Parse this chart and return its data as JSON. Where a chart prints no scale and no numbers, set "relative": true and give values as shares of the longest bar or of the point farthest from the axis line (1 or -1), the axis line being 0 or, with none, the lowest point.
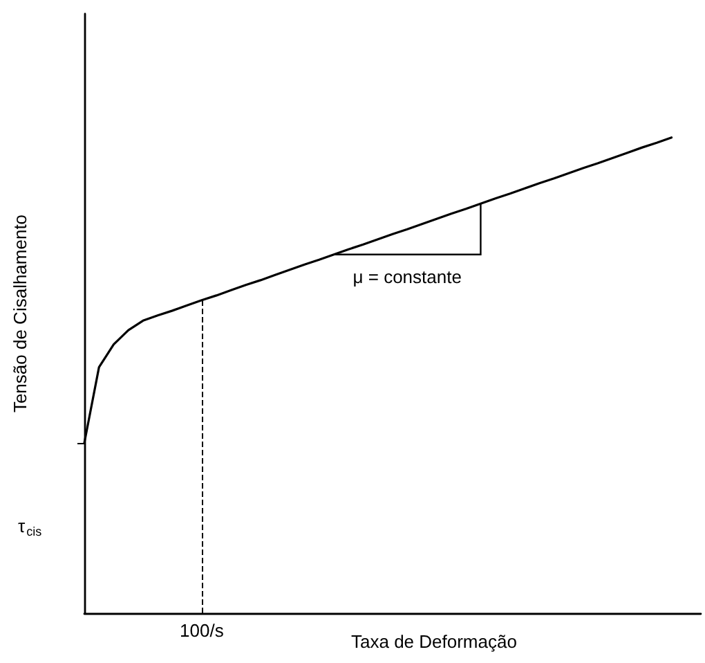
{
  "chart_data": {
    "type": "line",
    "relative": true,
    "xlabel": "Taxa de Deformação",
    "ylabel": "Tensão de Cisalhamento",
    "categories": [
      null,
      null,
      null,
      null,
      null,
      null,
      null,
      null,
      null,
      null,
      null,
      null,
      null,
      null,
      null,
      null,
      null,
      null,
      null,
      null,
      null,
      null,
      null,
      null,
      null,
      null,
      null,
      null,
      null,
      null,
      null,
      null,
      null,
      null,
      null,
      null,
      null,
      null,
      null,
      null,
      null,
      null,
      null
    ],
    "values": [
      0.358,
      0.517,
      0.565,
      0.595,
      0.615,
      0.626,
      0.636,
      0.647,
      0.658,
      0.668,
      0.679,
      0.69,
      0.7,
      0.711,
      0.722,
      0.733,
      0.743,
      0.754,
      0.765,
      0.775,
      0.786,
      0.797,
      0.807,
      0.818,
      0.829,
      0.84,
      0.85,
      0.861,
      0.872,
      0.882,
      0.893,
      0.904,
      0.914,
      0.925,
      0.936,
      0.946,
      0.957,
      0.968,
      0.979,
      0.989,
      1,
      null,
      null
    ],
    "color": "#000000",
    "annotations": [
      "τ$_{cis}$",
      "μ = constante",
      "100/s"
    ],
    "marker": "none",
    "line_style": "solid"
  }
}
